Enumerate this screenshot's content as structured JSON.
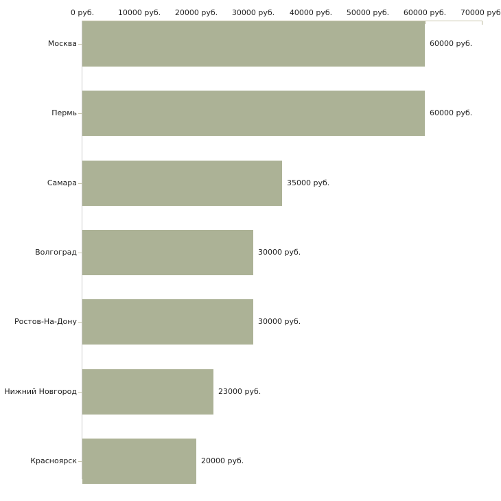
{
  "chart_data": {
    "type": "bar",
    "orientation": "horizontal",
    "title": "",
    "categories": [
      "Москва",
      "Пермь",
      "Самара",
      "Волгоград",
      "Ростов-На-Дону",
      "Нижний Новгород",
      "Красноярск"
    ],
    "values": [
      60000,
      60000,
      35000,
      30000,
      30000,
      23000,
      20000
    ],
    "value_labels": [
      "60000 руб.",
      "60000 руб.",
      "35000 руб.",
      "30000 руб.",
      "30000 руб.",
      "23000 руб.",
      "20000 руб."
    ],
    "x_axis": {
      "position": "top",
      "tick_values": [
        0,
        10000,
        20000,
        30000,
        40000,
        50000,
        60000,
        70000
      ],
      "tick_labels": [
        "0 руб.",
        "10000 руб.",
        "20000 руб.",
        "30000 руб.",
        "40000 руб.",
        "50000 руб.",
        "60000 руб.",
        "70000 руб."
      ],
      "min": 0,
      "max": 70000
    },
    "grid": false,
    "legend": false,
    "colors": {
      "bar": "#acb296",
      "x_axis_line": "#c9c6ab",
      "y_axis_line": "#c9c9c9",
      "x_tick": "#b5b294",
      "category_tick": "#c9c6ab",
      "text": "#1e1e1e"
    }
  }
}
